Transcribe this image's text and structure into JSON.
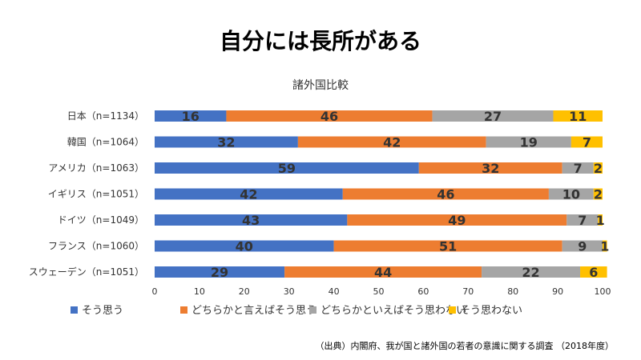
{
  "title": "自分には長所がある",
  "source": "（出典）内閣府、我が国と諸外国の若者の意識に関する調査 （2018年度）",
  "chart_data": {
    "type": "bar",
    "orientation": "horizontal",
    "stacked": true,
    "title": "諸外国比較",
    "categories": [
      "日本（n=1134）",
      "韓国（n=1064）",
      "アメリカ（n=1063）",
      "イギリス（n=1051）",
      "ドイツ（n=1049）",
      "フランス（n=1060）",
      "スウェーデン（n=1051）"
    ],
    "series": [
      {
        "name": "そう思う",
        "color": "#4472C4",
        "values": [
          16,
          32,
          59,
          42,
          43,
          40,
          29
        ]
      },
      {
        "name": "どちらかと言えばそう思う",
        "color": "#ED7D31",
        "values": [
          46,
          42,
          32,
          46,
          49,
          51,
          44
        ]
      },
      {
        "name": "どちらかといえばそう思わない",
        "color": "#A5A5A5",
        "values": [
          27,
          19,
          7,
          10,
          7,
          9,
          22
        ]
      },
      {
        "name": "そう思わない",
        "color": "#FFC000",
        "values": [
          11,
          7,
          2,
          2,
          1,
          1,
          6
        ]
      }
    ],
    "xlim": [
      0,
      100
    ],
    "xticks": [
      0,
      10,
      20,
      30,
      40,
      50,
      60,
      70,
      80,
      90,
      100
    ],
    "grid": false,
    "legend_position": "bottom"
  }
}
